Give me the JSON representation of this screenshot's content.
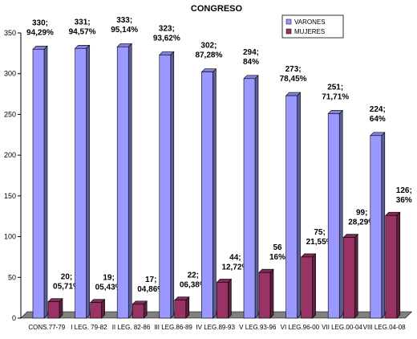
{
  "chart_data": {
    "type": "bar",
    "title": "CONGRESO",
    "categories": [
      "CONS.77-79",
      "I LEG. 79-82",
      "II LEG. 82-86",
      "III LEG.86-89",
      "IV LEG.89-93",
      "V LEG.93-96",
      "VI LEG.96-00",
      "VII LEG.00-04",
      "VIII LEG.04-08"
    ],
    "series": [
      {
        "name": "VARONES",
        "color": "#9999ff",
        "values": [
          330,
          331,
          333,
          323,
          302,
          294,
          273,
          251,
          224
        ],
        "labels": [
          [
            "330;",
            "94,29%"
          ],
          [
            "331;",
            "94,57%"
          ],
          [
            "333;",
            "95,14%"
          ],
          [
            "323;",
            "93,62%"
          ],
          [
            "302;",
            "87,28%"
          ],
          [
            "294;",
            "84%"
          ],
          [
            "273;",
            "78,45%"
          ],
          [
            "251;",
            "71,71%"
          ],
          [
            "224;",
            "64%"
          ]
        ]
      },
      {
        "name": "MUJERES",
        "color": "#993366",
        "values": [
          20,
          19,
          17,
          22,
          44,
          56,
          75,
          99,
          126
        ],
        "labels": [
          [
            "20;",
            "05,71%"
          ],
          [
            "19;",
            "05,43%"
          ],
          [
            "17;",
            "04,86%"
          ],
          [
            "22;",
            "06,38%"
          ],
          [
            "44;",
            "12,72%"
          ],
          [
            "56",
            "16%"
          ],
          [
            "75;",
            "21,55%"
          ],
          [
            "99;",
            "28,29%"
          ],
          [
            "126;",
            "36%"
          ]
        ]
      }
    ],
    "yticks": [
      "0",
      "50",
      "100",
      "150",
      "200",
      "250",
      "300",
      "350"
    ],
    "ylim": [
      0,
      350
    ],
    "grid": false,
    "legend": "top-right"
  }
}
